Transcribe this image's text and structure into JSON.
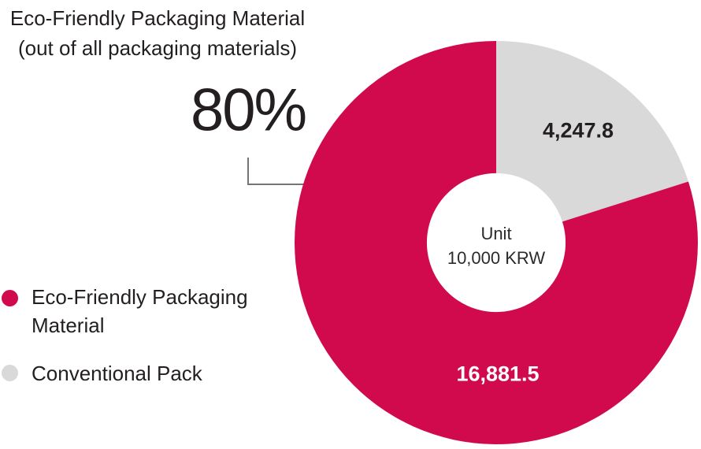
{
  "page": {
    "background": "#FFFFFF"
  },
  "header": {
    "title_line1": "Eco-Friendly Packaging Material",
    "title_line2": "(out of all packaging materials)",
    "percent_callout": "80%"
  },
  "chart_data": {
    "type": "pie",
    "subtype": "donut",
    "title": "Eco-Friendly Packaging Material (out of all packaging materials)",
    "unit_note": {
      "line1": "Unit",
      "line2": "10,000 KRW"
    },
    "slices": [
      {
        "name": "Eco-Friendly Packaging Material",
        "value": 16881.5,
        "label": "16,881.5",
        "color": "#D10A4D",
        "label_color": "#FFFFFF"
      },
      {
        "name": "Conventional Pack",
        "value": 4247.8,
        "label": "4,247.8",
        "color": "#D9D9D9",
        "label_color": "#231F20"
      }
    ],
    "draw_order": [
      1,
      0
    ],
    "start_angle_deg": 0,
    "direction": "clockwise",
    "inner_radius_ratio": 0.344,
    "legend_position": "bottom-left"
  },
  "legend": {
    "items": [
      {
        "label": "Eco-Friendly Packaging Material",
        "color": "#D10A4D"
      },
      {
        "label": "Conventional Pack",
        "color": "#D9D9D9"
      }
    ]
  },
  "colors": {
    "accent": "#D10A4D",
    "neutral": "#D9D9D9",
    "text_dark": "#231F20",
    "connector_line": "#757575"
  }
}
